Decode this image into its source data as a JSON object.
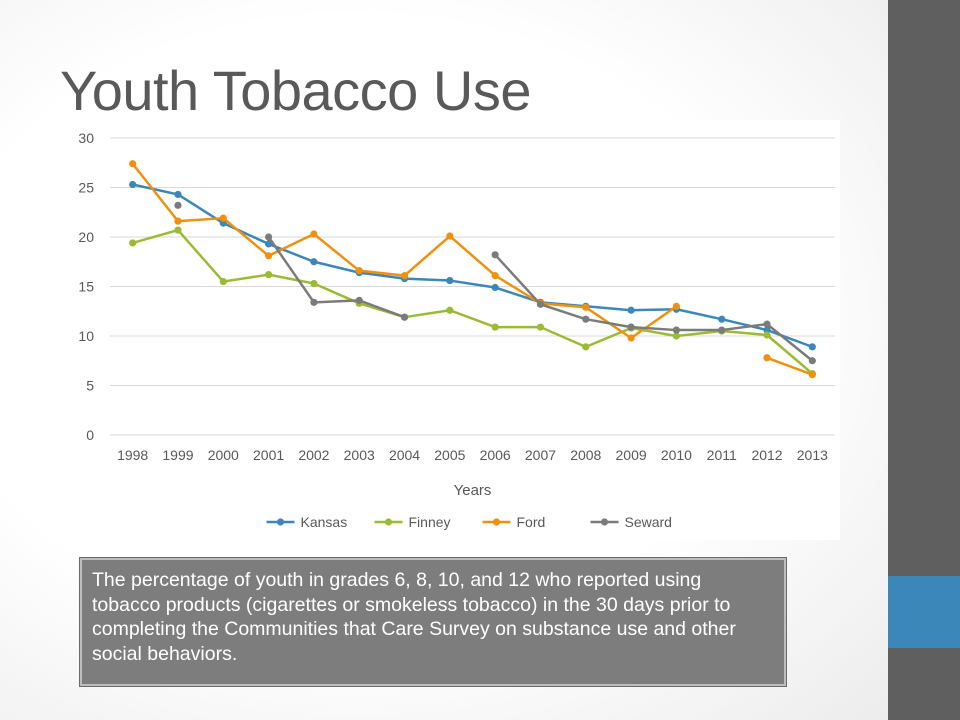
{
  "slide": {
    "title": "Youth Tobacco Use",
    "caption": "The percentage of youth in grades 6, 8, 10, and 12 who reported using tobacco products (cigarettes or smokeless tobacco) in the 30 days prior to completing the Communities that Care Survey on substance use and other social behaviors."
  },
  "colors": {
    "sidebar": "#5f5f5f",
    "accent": "#3c87b9",
    "title_text": "#595959",
    "caption_bg": "#7d7d7d"
  },
  "chart_data": {
    "type": "line",
    "title": "",
    "xlabel": "Years",
    "ylabel": "",
    "categories": [
      "1998",
      "1999",
      "2000",
      "2001",
      "2002",
      "2003",
      "2004",
      "2005",
      "2006",
      "2007",
      "2008",
      "2009",
      "2010",
      "2011",
      "2012",
      "2013"
    ],
    "ylim": [
      0,
      30
    ],
    "yticks": [
      0,
      5,
      10,
      15,
      20,
      25,
      30
    ],
    "grid": true,
    "legend_position": "bottom",
    "series": [
      {
        "name": "Kansas",
        "color": "#3c87b9",
        "values": [
          25.3,
          24.3,
          21.4,
          19.3,
          17.5,
          16.4,
          15.8,
          15.6,
          14.9,
          13.4,
          13.0,
          12.6,
          12.7,
          11.7,
          10.6,
          8.9
        ]
      },
      {
        "name": "Finney",
        "color": "#9bbb35",
        "values": [
          19.4,
          20.7,
          15.5,
          16.2,
          15.3,
          13.3,
          11.9,
          12.6,
          10.9,
          10.9,
          8.9,
          10.8,
          10.0,
          10.5,
          10.1,
          6.2
        ]
      },
      {
        "name": "Ford",
        "color": "#f0900f",
        "values": [
          27.4,
          21.6,
          21.9,
          18.1,
          20.3,
          16.6,
          16.1,
          20.1,
          16.1,
          13.3,
          12.9,
          9.8,
          13.0,
          null,
          7.8,
          6.1
        ]
      },
      {
        "name": "Seward",
        "color": "#7b7b7b",
        "values": [
          null,
          23.2,
          null,
          20.0,
          13.4,
          13.6,
          11.9,
          null,
          18.2,
          13.2,
          11.7,
          10.9,
          10.6,
          10.6,
          11.2,
          7.5
        ]
      }
    ]
  }
}
